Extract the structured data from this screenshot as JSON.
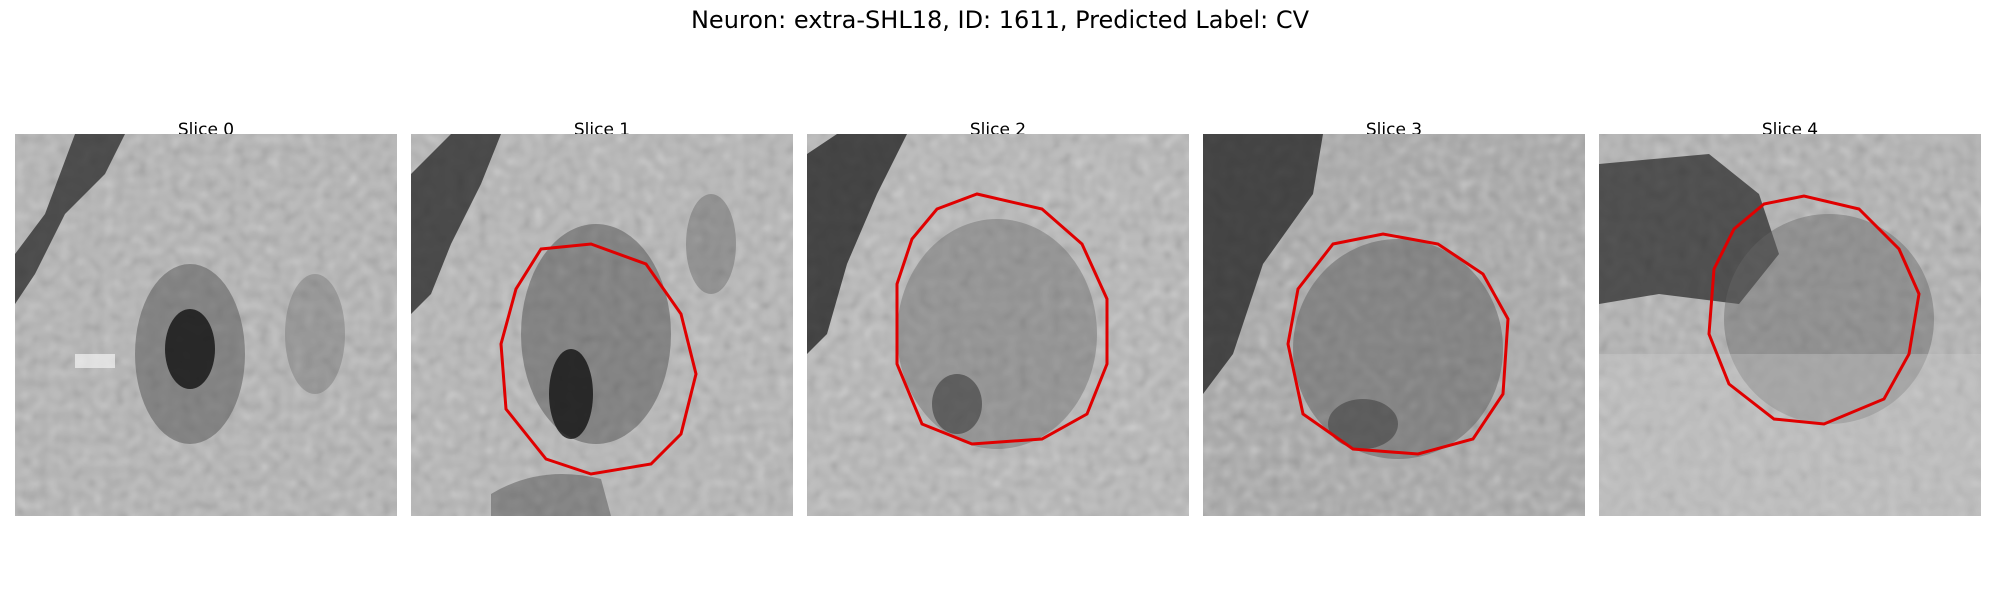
{
  "figure": {
    "title": "Neuron: extra-SHL18, ID: 1611, Predicted Label: CV",
    "contour_color": "#e00000"
  },
  "slices": [
    {
      "label": "Slice 0",
      "has_contour": false
    },
    {
      "label": "Slice 1",
      "has_contour": true
    },
    {
      "label": "Slice 2",
      "has_contour": true
    },
    {
      "label": "Slice 3",
      "has_contour": true
    },
    {
      "label": "Slice 4",
      "has_contour": true
    }
  ]
}
